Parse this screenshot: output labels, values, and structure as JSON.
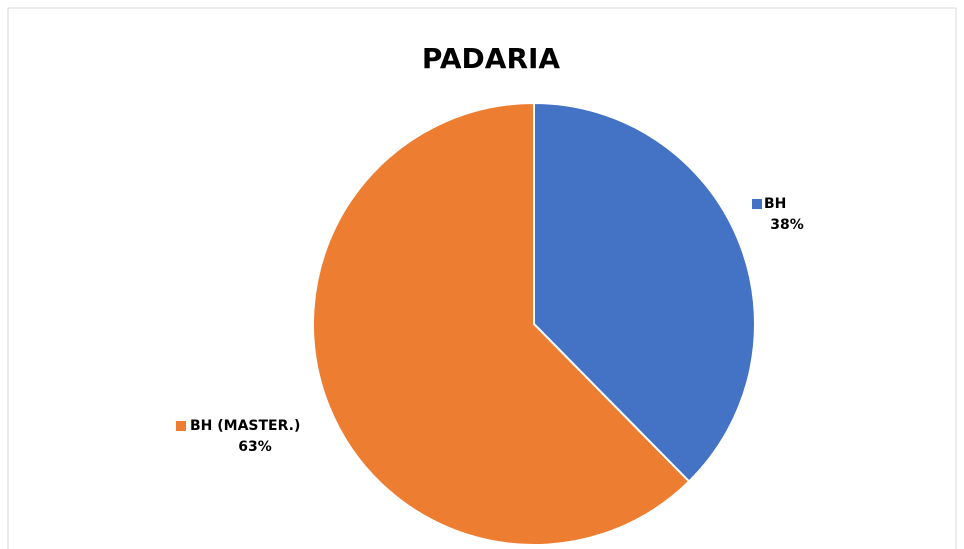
{
  "chart_data": {
    "type": "pie",
    "title": "PADARIA",
    "categories": [
      "BH",
      "BH (MASTER.)"
    ],
    "values": [
      38,
      63
    ],
    "value_labels": [
      "38%",
      "63%"
    ],
    "colors": [
      "#4472c4",
      "#ed7d31"
    ]
  }
}
